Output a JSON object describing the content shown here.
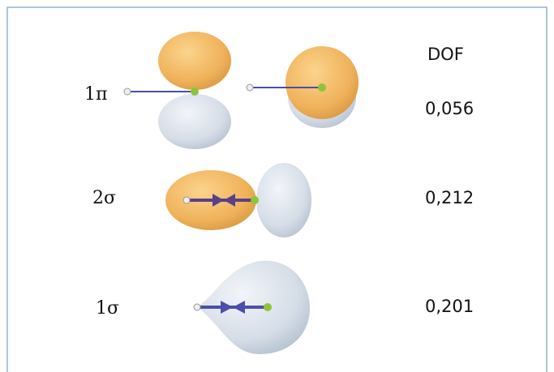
{
  "header": {
    "title": "DOF"
  },
  "rows": [
    {
      "label": "1π",
      "dof": "0,056"
    },
    {
      "label": "2σ",
      "dof": "0,212"
    },
    {
      "label": "1σ",
      "dof": "0,201"
    }
  ]
}
